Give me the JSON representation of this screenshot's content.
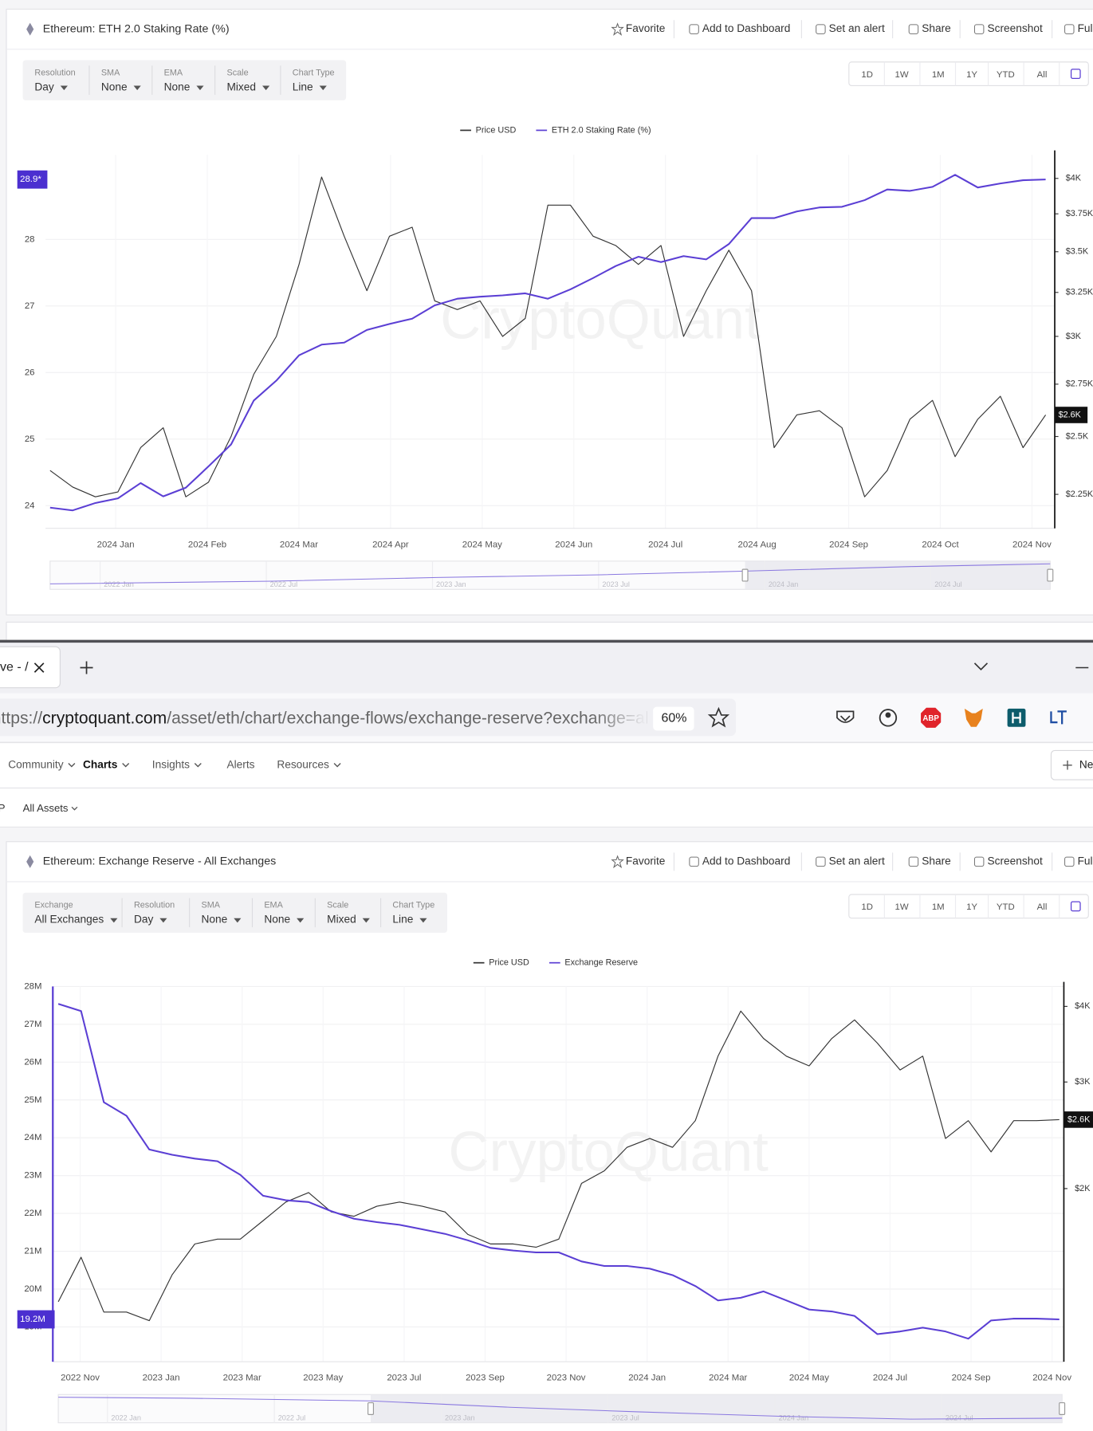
{
  "panels": [
    {
      "title": "Ethereum: ETH 2.0 Staking Rate (%)",
      "actions": [
        "Favorite",
        "Add to Dashboard",
        "Set an alert",
        "Share",
        "Screenshot",
        "Ful"
      ],
      "controls": [
        {
          "label": "Resolution",
          "value": "Day"
        },
        {
          "label": "SMA",
          "value": "None"
        },
        {
          "label": "EMA",
          "value": "None"
        },
        {
          "label": "Scale",
          "value": "Mixed"
        },
        {
          "label": "Chart Type",
          "value": "Line"
        }
      ],
      "ranges": [
        "1D",
        "1W",
        "1M",
        "1Y",
        "YTD",
        "All"
      ],
      "watermark": "CryptoQuant",
      "chart": {
        "type": "line",
        "grid": true,
        "series": [
          {
            "name": "Price USD",
            "color": "#333333",
            "axis": "y2",
            "values": [
              2350,
              2280,
              2240,
              2260,
              2450,
              2540,
              2240,
              2300,
              2500,
              2800,
              3000,
              3420,
              4010,
              3600,
              3260,
              3600,
              3660,
              3200,
              3150,
              3200,
              3000,
              3100,
              3810,
              3810,
              3600,
              3540,
              3420,
              3540,
              3000,
              3260,
              3510,
              3260,
              2450,
              2600,
              2620,
              2540,
              2240,
              2350,
              2580,
              2670,
              2410,
              2580,
              2690,
              2450,
              2600
            ]
          },
          {
            "name": "ETH 2.0 Staking Rate (%)",
            "color": "#5b3fd4",
            "values": [
              23.97,
              23.93,
              24.04,
              24.11,
              24.34,
              24.14,
              24.27,
              24.59,
              24.92,
              25.58,
              25.88,
              26.26,
              26.42,
              26.45,
              26.64,
              26.73,
              26.81,
              27.01,
              27.11,
              27.14,
              27.16,
              27.19,
              27.11,
              27.25,
              27.42,
              27.6,
              27.74,
              27.66,
              27.75,
              27.7,
              27.93,
              28.32,
              28.32,
              28.42,
              28.48,
              28.49,
              28.59,
              28.75,
              28.73,
              28.79,
              28.97,
              28.78,
              28.84,
              28.89,
              28.9
            ]
          }
        ],
        "x_labels": [
          "2024 Jan",
          "2024 Feb",
          "2024 Mar",
          "2024 Apr",
          "2024 May",
          "2024 Jun",
          "2024 Jul",
          "2024 Aug",
          "2024 Sep",
          "2024 Oct",
          "2024 Nov"
        ],
        "ylim": [
          23.66,
          29.27
        ],
        "yticks": [
          24,
          25,
          26,
          27,
          28
        ],
        "y2lim": [
          2115,
          4175
        ],
        "y2log": true,
        "y2ticks": [
          {
            "value": 4000,
            "label": "$4K"
          },
          {
            "value": 3750,
            "label": "$3.75K"
          },
          {
            "value": 3500,
            "label": "$3.5K"
          },
          {
            "value": 3250,
            "label": "$3.25K"
          },
          {
            "value": 3000,
            "label": "$3K"
          },
          {
            "value": 2750,
            "label": "$2.75K"
          },
          {
            "value": 2500,
            "label": "$2.5K"
          },
          {
            "value": 2250,
            "label": "$2.25K"
          }
        ],
        "current_y": {
          "value": 28.9,
          "label": "28.9*"
        },
        "current_y2": {
          "value": 2600,
          "label": "$2.6K"
        },
        "navigator_labels": [
          "2022 Jan",
          "2022 Jul",
          "2023 Jan",
          "2023 Jul",
          "2024 Jan",
          "2024 Jul"
        ]
      }
    },
    {
      "title": "Ethereum: Exchange Reserve - All Exchanges",
      "actions": [
        "Favorite",
        "Add to Dashboard",
        "Set an alert",
        "Share",
        "Screenshot",
        "Ful"
      ],
      "controls": [
        {
          "label": "Exchange",
          "value": "All Exchanges"
        },
        {
          "label": "Resolution",
          "value": "Day"
        },
        {
          "label": "SMA",
          "value": "None"
        },
        {
          "label": "EMA",
          "value": "None"
        },
        {
          "label": "Scale",
          "value": "Mixed"
        },
        {
          "label": "Chart Type",
          "value": "Line"
        }
      ],
      "ranges": [
        "1D",
        "1W",
        "1M",
        "1Y",
        "YTD",
        "All"
      ],
      "watermark": "CryptoQuant",
      "chart": {
        "type": "line",
        "grid": true,
        "series": [
          {
            "name": "Price USD",
            "color": "#333333",
            "axis": "y2",
            "values": [
              1300,
              1540,
              1250,
              1250,
              1210,
              1440,
              1620,
              1650,
              1650,
              1770,
              1900,
              1970,
              1830,
              1800,
              1870,
              1900,
              1870,
              1830,
              1680,
              1620,
              1620,
              1600,
              1650,
              2040,
              2140,
              2340,
              2420,
              2340,
              2590,
              3310,
              3930,
              3540,
              3310,
              3190,
              3540,
              3800,
              3480,
              3140,
              3310,
              2420,
              2590,
              2300,
              2590,
              2590,
              2600
            ]
          },
          {
            "name": "Exchange Reserve",
            "color": "#5b3fd4",
            "values": [
              27540000,
              27350000,
              24940000,
              24580000,
              23690000,
              23550000,
              23450000,
              23380000,
              23020000,
              22470000,
              22350000,
              22300000,
              22060000,
              21860000,
              21770000,
              21700000,
              21580000,
              21460000,
              21290000,
              21090000,
              21020000,
              20970000,
              20970000,
              20730000,
              20610000,
              20610000,
              20540000,
              20370000,
              20080000,
              19700000,
              19770000,
              19940000,
              19700000,
              19460000,
              19410000,
              19290000,
              18810000,
              18880000,
              18980000,
              18880000,
              18690000,
              19170000,
              19220000,
              19220000,
              19200000
            ]
          }
        ],
        "x_labels": [
          "2022 Nov",
          "2023 Jan",
          "2023 Mar",
          "2023 May",
          "2023 Jul",
          "2023 Sep",
          "2023 Nov",
          "2024 Jan",
          "2024 Mar",
          "2024 May",
          "2024 Jul",
          "2024 Sep",
          "2024 Nov"
        ],
        "ylim": [
          18080000,
          28000000
        ],
        "yticks": [
          {
            "value": 28000000,
            "label": "28M"
          },
          {
            "value": 27000000,
            "label": "27M"
          },
          {
            "value": 26000000,
            "label": "26M"
          },
          {
            "value": 25000000,
            "label": "25M"
          },
          {
            "value": 24000000,
            "label": "24M"
          },
          {
            "value": 23000000,
            "label": "23M"
          },
          {
            "value": 22000000,
            "label": "22M"
          },
          {
            "value": 21000000,
            "label": "21M"
          },
          {
            "value": 20000000,
            "label": "20M"
          },
          {
            "value": 19000000,
            "label": "19M"
          }
        ],
        "y2lim": [
          1035,
          4315
        ],
        "y2log": true,
        "y2ticks": [
          {
            "value": 4000,
            "label": "$4K"
          },
          {
            "value": 3000,
            "label": "$3K"
          },
          {
            "value": 2000,
            "label": "$2K"
          }
        ],
        "current_y": {
          "value": 19200000,
          "label": "19.2M"
        },
        "current_y2": {
          "value": 2600,
          "label": "$2.6K"
        },
        "navigator_labels": [
          "2022 Jan",
          "2022 Jul",
          "2023 Jan",
          "2023 Jul",
          "2024 Jan",
          "2024 Jul"
        ]
      }
    }
  ],
  "browser": {
    "tab_title": "ve - /",
    "url": {
      "scheme": "https://",
      "host": "cryptoquant.com",
      "path": "/asset/eth/chart/exchange-flows/exchange-reserve?exchange=all"
    },
    "zoom": "60%",
    "abp": "ABP",
    "nav": [
      "Community",
      "Charts",
      "Insights",
      "Alerts",
      "Resources"
    ],
    "new_button": "Ne",
    "subnav": [
      "P",
      "All Assets"
    ]
  }
}
